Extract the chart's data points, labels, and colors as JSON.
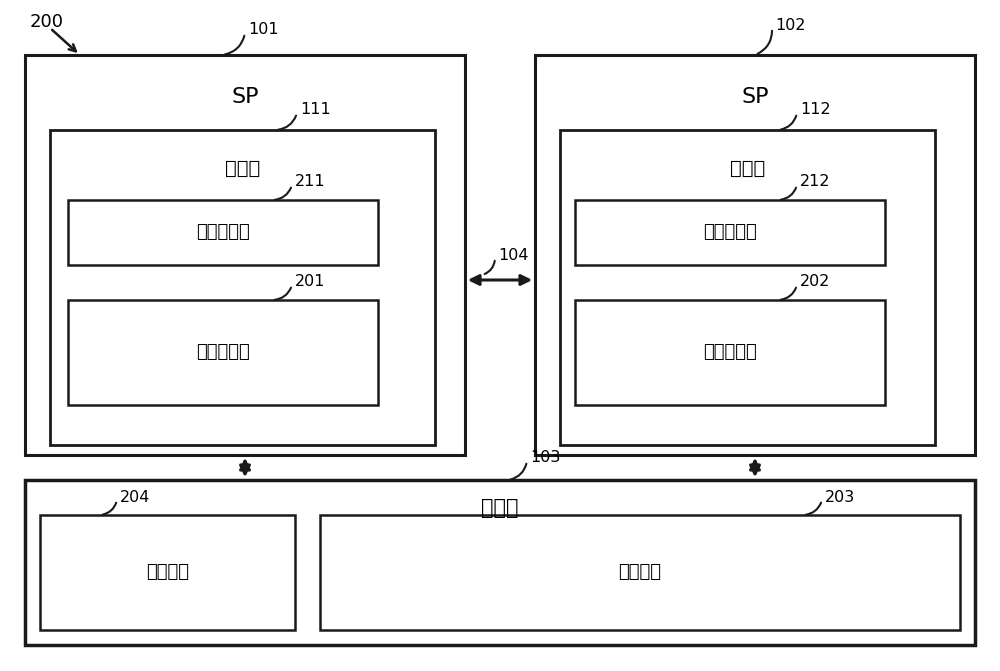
{
  "bg_color": "#ffffff",
  "border_color": "#1a1a1a",
  "font_color": "#000000",
  "label_200": "200",
  "label_101": "101",
  "label_102": "102",
  "label_103": "103",
  "label_104": "104",
  "label_111": "111",
  "label_112": "112",
  "label_211": "211",
  "label_212": "212",
  "label_201": "201",
  "label_202": "202",
  "label_203": "203",
  "label_204": "204",
  "text_sp": "SP",
  "text_memory": "存储器",
  "text_temp_buf": "临时缓冲器",
  "text_work_buf": "工作缓冲器",
  "text_disk": "存储盘",
  "text_temp_area": "临时区域",
  "text_work_area": "工作区域"
}
